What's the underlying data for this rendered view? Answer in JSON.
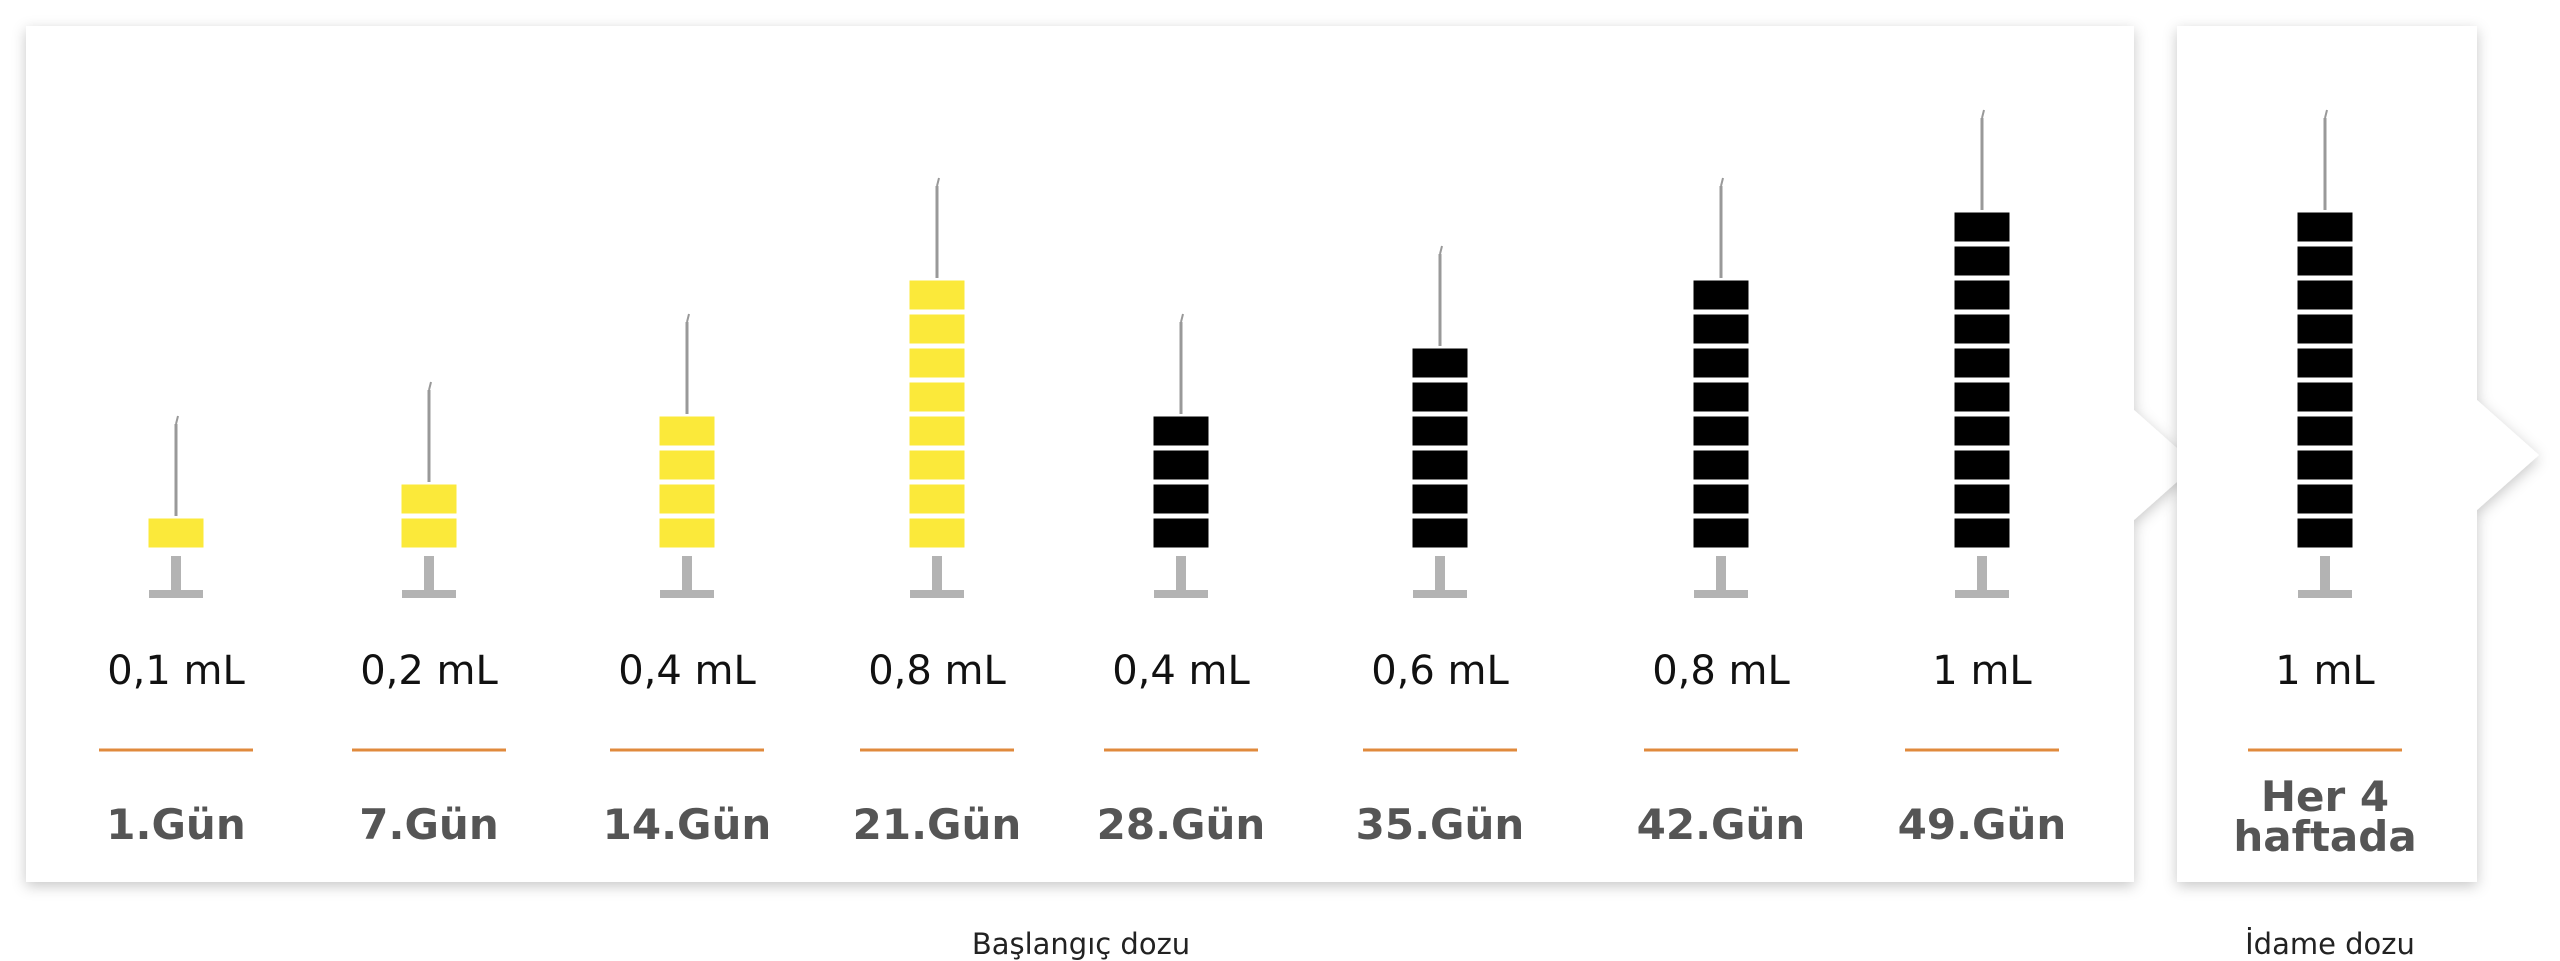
{
  "groups": [
    {
      "label": "Başlangıç dozu",
      "items": [
        {
          "dose": {
            "value": 0.1,
            "label": "0,1 mL"
          },
          "day": "1.Gün",
          "color": "#fbe93a"
        },
        {
          "dose": {
            "value": 0.2,
            "label": "0,2 mL"
          },
          "day": "7.Gün",
          "color": "#fbe93a"
        },
        {
          "dose": {
            "value": 0.4,
            "label": "0,4 mL"
          },
          "day": "14.Gün",
          "color": "#fbe93a"
        },
        {
          "dose": {
            "value": 0.8,
            "label": "0,8 mL"
          },
          "day": "21.Gün",
          "color": "#fbe93a"
        },
        {
          "dose": {
            "value": 0.4,
            "label": "0,4 mL"
          },
          "day": "28.Gün",
          "color": "#000000"
        },
        {
          "dose": {
            "value": 0.6,
            "label": "0,6 mL"
          },
          "day": "35.Gün",
          "color": "#000000"
        },
        {
          "dose": {
            "value": 0.8,
            "label": "0,8 mL"
          },
          "day": "42.Gün",
          "color": "#000000"
        },
        {
          "dose": {
            "value": 1,
            "label": "1 mL"
          },
          "day": "49.Gün",
          "color": "#000000"
        }
      ]
    },
    {
      "label": "İdame dozu",
      "items": [
        {
          "dose": {
            "value": 1,
            "label": "1 mL"
          },
          "day": "Her 4 haftada",
          "color": "#000000"
        }
      ]
    }
  ]
}
